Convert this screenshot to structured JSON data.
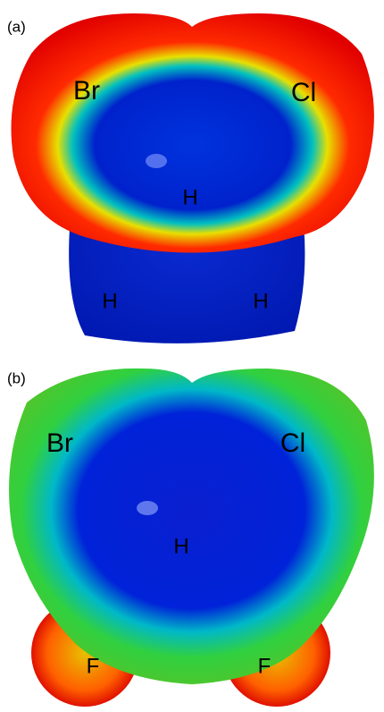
{
  "panels": [
    {
      "label": "(a)",
      "atoms": [
        "Br",
        "Cl",
        "H",
        "H",
        "H"
      ]
    },
    {
      "label": "(b)",
      "atoms": [
        "Br",
        "Cl",
        "H",
        "F",
        "F"
      ]
    }
  ]
}
